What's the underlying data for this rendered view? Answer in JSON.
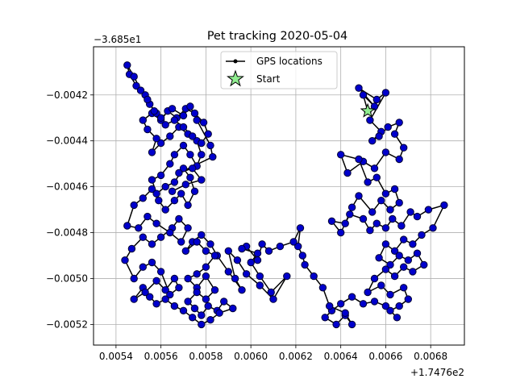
{
  "chart_data": {
    "type": "line",
    "title": "Pet tracking 2020-05-04",
    "xlabel": "",
    "ylabel": "",
    "x_offset_label": "+1.7476e2",
    "y_offset_label": "−3.685e1",
    "xlim": [
      0.0053,
      0.00695
    ],
    "ylim": [
      -0.00529,
      -0.00399
    ],
    "x_ticks": [
      0.0054,
      0.0056,
      0.0058,
      0.006,
      0.0062,
      0.0064,
      0.0066,
      0.0068
    ],
    "x_tick_labels": [
      "0.0054",
      "0.0056",
      "0.0058",
      "0.0060",
      "0.0062",
      "0.0064",
      "0.0066",
      "0.0068"
    ],
    "y_ticks": [
      -0.0042,
      -0.0044,
      -0.0046,
      -0.0048,
      -0.005,
      -0.0052
    ],
    "y_tick_labels": [
      "−0.0042",
      "−0.0044",
      "−0.0046",
      "−0.0048",
      "−0.0050",
      "−0.0052"
    ],
    "grid": true,
    "legend_position": "top-center",
    "legend": [
      {
        "label": "GPS locations",
        "marker": "line-dot"
      },
      {
        "label": "Start",
        "marker": "star"
      }
    ],
    "colors": {
      "line": "#000000",
      "marker_fill": "#0000cc",
      "marker_edge": "#000033",
      "start_fill": "#90ee90",
      "start_edge": "#000000",
      "grid": "#b0b0b0"
    },
    "start_point": {
      "x": 0.00652,
      "y": -0.00427
    },
    "series": [
      {
        "name": "GPS locations",
        "points": [
          [
            0.00652,
            -0.00427
          ],
          [
            0.0065,
            -0.0042
          ],
          [
            0.00655,
            -0.00425
          ],
          [
            0.00648,
            -0.00417
          ],
          [
            0.00656,
            -0.00422
          ],
          [
            0.0066,
            -0.00419
          ],
          [
            0.00653,
            -0.00431
          ],
          [
            0.00658,
            -0.00436
          ],
          [
            0.00654,
            -0.0044
          ],
          [
            0.00657,
            -0.00438
          ],
          [
            0.00661,
            -0.00434
          ],
          [
            0.00666,
            -0.00432
          ],
          [
            0.00664,
            -0.00437
          ],
          [
            0.00668,
            -0.00443
          ],
          [
            0.00666,
            -0.00448
          ],
          [
            0.0066,
            -0.00445
          ],
          [
            0.00655,
            -0.00452
          ],
          [
            0.0065,
            -0.00449
          ],
          [
            0.00643,
            -0.00454
          ],
          [
            0.0064,
            -0.00446
          ],
          [
            0.00648,
            -0.00448
          ],
          [
            0.00652,
            -0.00458
          ],
          [
            0.00656,
            -0.00456
          ],
          [
            0.0066,
            -0.00463
          ],
          [
            0.00664,
            -0.00461
          ],
          [
            0.00666,
            -0.00467
          ],
          [
            0.00662,
            -0.0047
          ],
          [
            0.00658,
            -0.00466
          ],
          [
            0.00654,
            -0.00471
          ],
          [
            0.00648,
            -0.00464
          ],
          [
            0.00645,
            -0.00469
          ],
          [
            0.00642,
            -0.00476
          ],
          [
            0.00636,
            -0.00475
          ],
          [
            0.0064,
            -0.0048
          ],
          [
            0.00644,
            -0.00472
          ],
          [
            0.0065,
            -0.00474
          ],
          [
            0.00653,
            -0.00479
          ],
          [
            0.00656,
            -0.00476
          ],
          [
            0.0066,
            -0.00478
          ],
          [
            0.00663,
            -0.00474
          ],
          [
            0.00667,
            -0.00477
          ],
          [
            0.00671,
            -0.00471
          ],
          [
            0.00674,
            -0.00473
          ],
          [
            0.00679,
            -0.0047
          ],
          [
            0.00686,
            -0.00468
          ],
          [
            0.00681,
            -0.00478
          ],
          [
            0.00676,
            -0.00481
          ],
          [
            0.00672,
            -0.00485
          ],
          [
            0.00668,
            -0.00483
          ],
          [
            0.00664,
            -0.00488
          ],
          [
            0.0066,
            -0.00485
          ],
          [
            0.00657,
            -0.00491
          ],
          [
            0.00662,
            -0.00494
          ],
          [
            0.00666,
            -0.0049
          ],
          [
            0.0067,
            -0.00492
          ],
          [
            0.00674,
            -0.00489
          ],
          [
            0.00677,
            -0.00494
          ],
          [
            0.00672,
            -0.00497
          ],
          [
            0.00668,
            -0.00495
          ],
          [
            0.00664,
            -0.00499
          ],
          [
            0.0066,
            -0.00496
          ],
          [
            0.00655,
            -0.005
          ],
          [
            0.00652,
            -0.00506
          ],
          [
            0.00658,
            -0.00503
          ],
          [
            0.00662,
            -0.00507
          ],
          [
            0.00668,
            -0.00504
          ],
          [
            0.0067,
            -0.00509
          ],
          [
            0.00666,
            -0.00512
          ],
          [
            0.00662,
            -0.00514
          ],
          [
            0.00665,
            -0.00517
          ],
          [
            0.0066,
            -0.00512
          ],
          [
            0.00655,
            -0.0051
          ],
          [
            0.0065,
            -0.00511
          ],
          [
            0.00645,
            -0.00508
          ],
          [
            0.0064,
            -0.00511
          ],
          [
            0.00636,
            -0.00514
          ],
          [
            0.00633,
            -0.00517
          ],
          [
            0.00638,
            -0.0052
          ],
          [
            0.00642,
            -0.00516
          ],
          [
            0.00645,
            -0.0052
          ],
          [
            0.00642,
            -0.00515
          ],
          [
            0.00635,
            -0.00512
          ],
          [
            0.00632,
            -0.00504
          ],
          [
            0.00628,
            -0.00499
          ],
          [
            0.00624,
            -0.00494
          ],
          [
            0.00623,
            -0.0049
          ],
          [
            0.00621,
            -0.00486
          ],
          [
            0.00622,
            -0.00478
          ],
          [
            0.00619,
            -0.00484
          ],
          [
            0.00613,
            -0.00486
          ],
          [
            0.00608,
            -0.00488
          ],
          [
            0.00605,
            -0.00485
          ],
          [
            0.00603,
            -0.00492
          ],
          [
            0.00598,
            -0.00486
          ],
          [
            0.00596,
            -0.00487
          ],
          [
            0.00603,
            -0.00489
          ],
          [
            0.006,
            -0.00493
          ],
          [
            0.00604,
            -0.00499
          ],
          [
            0.00609,
            -0.00506
          ],
          [
            0.00616,
            -0.00499
          ],
          [
            0.0061,
            -0.00509
          ],
          [
            0.00604,
            -0.00503
          ],
          [
            0.00598,
            -0.00498
          ],
          [
            0.00594,
            -0.00492
          ],
          [
            0.0059,
            -0.00488
          ],
          [
            0.00593,
            -0.005
          ],
          [
            0.00596,
            -0.00505
          ],
          [
            0.0059,
            -0.00497
          ],
          [
            0.00585,
            -0.0049
          ],
          [
            0.00582,
            -0.00485
          ],
          [
            0.00578,
            -0.00481
          ],
          [
            0.00574,
            -0.00484
          ],
          [
            0.00571,
            -0.00488
          ],
          [
            0.00576,
            -0.00484
          ],
          [
            0.0058,
            -0.00488
          ],
          [
            0.00584,
            -0.0049
          ],
          [
            0.0058,
            -0.00495
          ],
          [
            0.00576,
            -0.00498
          ],
          [
            0.00572,
            -0.005
          ],
          [
            0.00576,
            -0.00504
          ],
          [
            0.0058,
            -0.00499
          ],
          [
            0.00584,
            -0.00505
          ],
          [
            0.0058,
            -0.00509
          ],
          [
            0.00576,
            -0.00506
          ],
          [
            0.00572,
            -0.0051
          ],
          [
            0.00575,
            -0.00513
          ],
          [
            0.00578,
            -0.00516
          ],
          [
            0.00581,
            -0.00512
          ],
          [
            0.00585,
            -0.00514
          ],
          [
            0.00588,
            -0.0051
          ],
          [
            0.00592,
            -0.00513
          ],
          [
            0.00586,
            -0.00515
          ],
          [
            0.00582,
            -0.00518
          ],
          [
            0.00578,
            -0.0052
          ],
          [
            0.00574,
            -0.00517
          ],
          [
            0.0057,
            -0.00514
          ],
          [
            0.00566,
            -0.00512
          ],
          [
            0.00562,
            -0.00509
          ],
          [
            0.00558,
            -0.00511
          ],
          [
            0.00555,
            -0.00508
          ],
          [
            0.00552,
            -0.00504
          ],
          [
            0.00548,
            -0.00509
          ],
          [
            0.00553,
            -0.00506
          ],
          [
            0.00558,
            -0.00501
          ],
          [
            0.00562,
            -0.00505
          ],
          [
            0.00566,
            -0.005
          ],
          [
            0.00568,
            -0.00504
          ],
          [
            0.00564,
            -0.00507
          ],
          [
            0.0056,
            -0.00497
          ],
          [
            0.00556,
            -0.00493
          ],
          [
            0.00552,
            -0.00495
          ],
          [
            0.00548,
            -0.005
          ],
          [
            0.00544,
            -0.00492
          ],
          [
            0.00547,
            -0.00487
          ],
          [
            0.00552,
            -0.00482
          ],
          [
            0.00556,
            -0.00485
          ],
          [
            0.0056,
            -0.00482
          ],
          [
            0.00565,
            -0.00478
          ],
          [
            0.00568,
            -0.00474
          ],
          [
            0.00572,
            -0.00478
          ],
          [
            0.00569,
            -0.00484
          ],
          [
            0.00564,
            -0.0048
          ],
          [
            0.00558,
            -0.00476
          ],
          [
            0.00554,
            -0.00473
          ],
          [
            0.0055,
            -0.00478
          ],
          [
            0.00545,
            -0.00477
          ],
          [
            0.00548,
            -0.00468
          ],
          [
            0.00552,
            -0.00465
          ],
          [
            0.00556,
            -0.00461
          ],
          [
            0.00559,
            -0.00466
          ],
          [
            0.00562,
            -0.0047
          ],
          [
            0.00566,
            -0.00466
          ],
          [
            0.00569,
            -0.00463
          ],
          [
            0.00572,
            -0.00468
          ],
          [
            0.00575,
            -0.00462
          ],
          [
            0.00573,
            -0.00456
          ],
          [
            0.0057,
            -0.00452
          ],
          [
            0.00566,
            -0.00458
          ],
          [
            0.00562,
            -0.0046
          ],
          [
            0.00558,
            -0.00463
          ],
          [
            0.00556,
            -0.00457
          ],
          [
            0.0056,
            -0.00455
          ],
          [
            0.00564,
            -0.0045
          ],
          [
            0.00566,
            -0.00446
          ],
          [
            0.0057,
            -0.00442
          ],
          [
            0.00573,
            -0.00446
          ],
          [
            0.00576,
            -0.00451
          ],
          [
            0.00578,
            -0.00446
          ],
          [
            0.00576,
            -0.0044
          ],
          [
            0.00572,
            -0.00437
          ],
          [
            0.00568,
            -0.00434
          ],
          [
            0.00564,
            -0.00438
          ],
          [
            0.0056,
            -0.00441
          ],
          [
            0.00556,
            -0.00445
          ],
          [
            0.00558,
            -0.00439
          ],
          [
            0.00554,
            -0.00435
          ],
          [
            0.00552,
            -0.00431
          ],
          [
            0.00556,
            -0.00428
          ],
          [
            0.0056,
            -0.00431
          ],
          [
            0.00563,
            -0.00427
          ],
          [
            0.00567,
            -0.0043
          ],
          [
            0.00571,
            -0.00426
          ],
          [
            0.00575,
            -0.00428
          ],
          [
            0.00579,
            -0.00432
          ],
          [
            0.00581,
            -0.00437
          ],
          [
            0.00578,
            -0.00441
          ],
          [
            0.00574,
            -0.00438
          ],
          [
            0.0057,
            -0.00434
          ],
          [
            0.00566,
            -0.00431
          ],
          [
            0.00562,
            -0.00433
          ],
          [
            0.00558,
            -0.00428
          ],
          [
            0.00555,
            -0.00424
          ],
          [
            0.00553,
            -0.0042
          ],
          [
            0.00549,
            -0.00416
          ],
          [
            0.00546,
            -0.00411
          ],
          [
            0.00545,
            -0.00407
          ],
          [
            0.00548,
            -0.00412
          ],
          [
            0.00551,
            -0.00418
          ],
          [
            0.00554,
            -0.00422
          ],
          [
            0.00557,
            -0.00427
          ],
          [
            0.0056,
            -0.0043
          ],
          [
            0.00565,
            -0.00426
          ],
          [
            0.0057,
            -0.00429
          ],
          [
            0.00573,
            -0.00425
          ],
          [
            0.00576,
            -0.00431
          ],
          [
            0.00582,
            -0.00442
          ],
          [
            0.00583,
            -0.00447
          ],
          [
            0.00568,
            -0.00454
          ],
          [
            0.00574,
            -0.00452
          ],
          [
            0.00578,
            -0.00457
          ],
          [
            0.00571,
            -0.00459
          ],
          [
            0.00565,
            -0.00462
          ]
        ]
      }
    ]
  }
}
